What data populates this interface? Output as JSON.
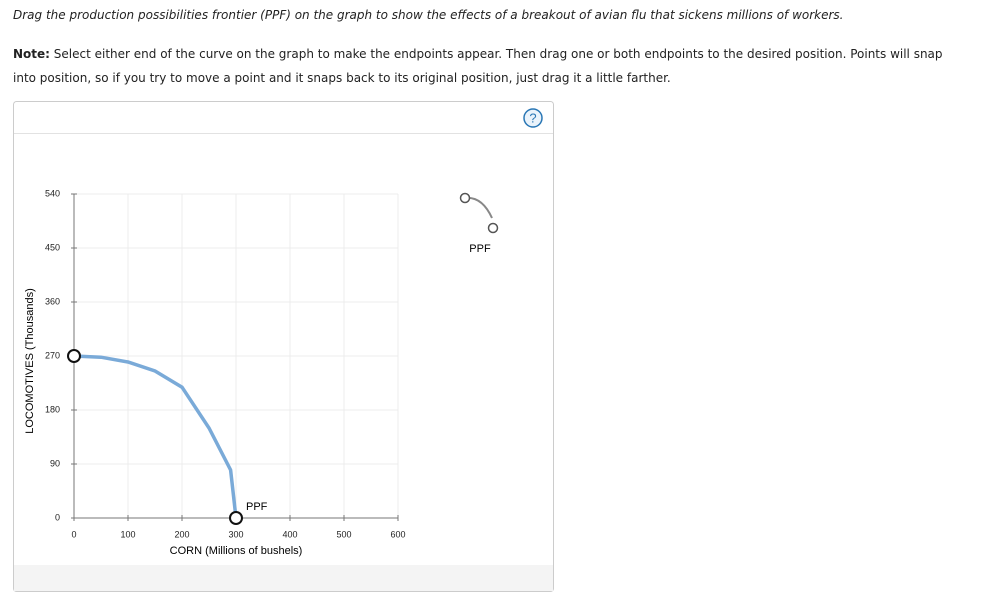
{
  "instruction": "Drag the production possibilities frontier (PPF) on the graph to show the effects of a breakout of avian flu that sickens millions of workers.",
  "note_label": "Note:",
  "note_text": "Select either end of the curve on the graph to make the endpoints appear. Then drag one or both endpoints to the desired position. Points will snap into position, so if you try to move a point and it snaps back to its original position, just drag it a little farther.",
  "help_icon": "?",
  "chart_data": {
    "type": "line",
    "x_label": "CORN (Millions of bushels)",
    "y_label": "LOCOMOTIVES (Thousands)",
    "series": [
      {
        "name": "PPF",
        "color": "#7aaad8",
        "x": [
          0,
          50,
          100,
          150,
          200,
          250,
          290,
          300
        ],
        "values": [
          270,
          268,
          260,
          245,
          218,
          150,
          80,
          0
        ]
      }
    ],
    "xlim": [
      0,
      600
    ],
    "ylim": [
      0,
      540
    ],
    "xticks": [
      0,
      100,
      200,
      300,
      400,
      500,
      600
    ],
    "yticks": [
      0,
      90,
      180,
      270,
      360,
      450,
      540
    ],
    "grid": true
  }
}
